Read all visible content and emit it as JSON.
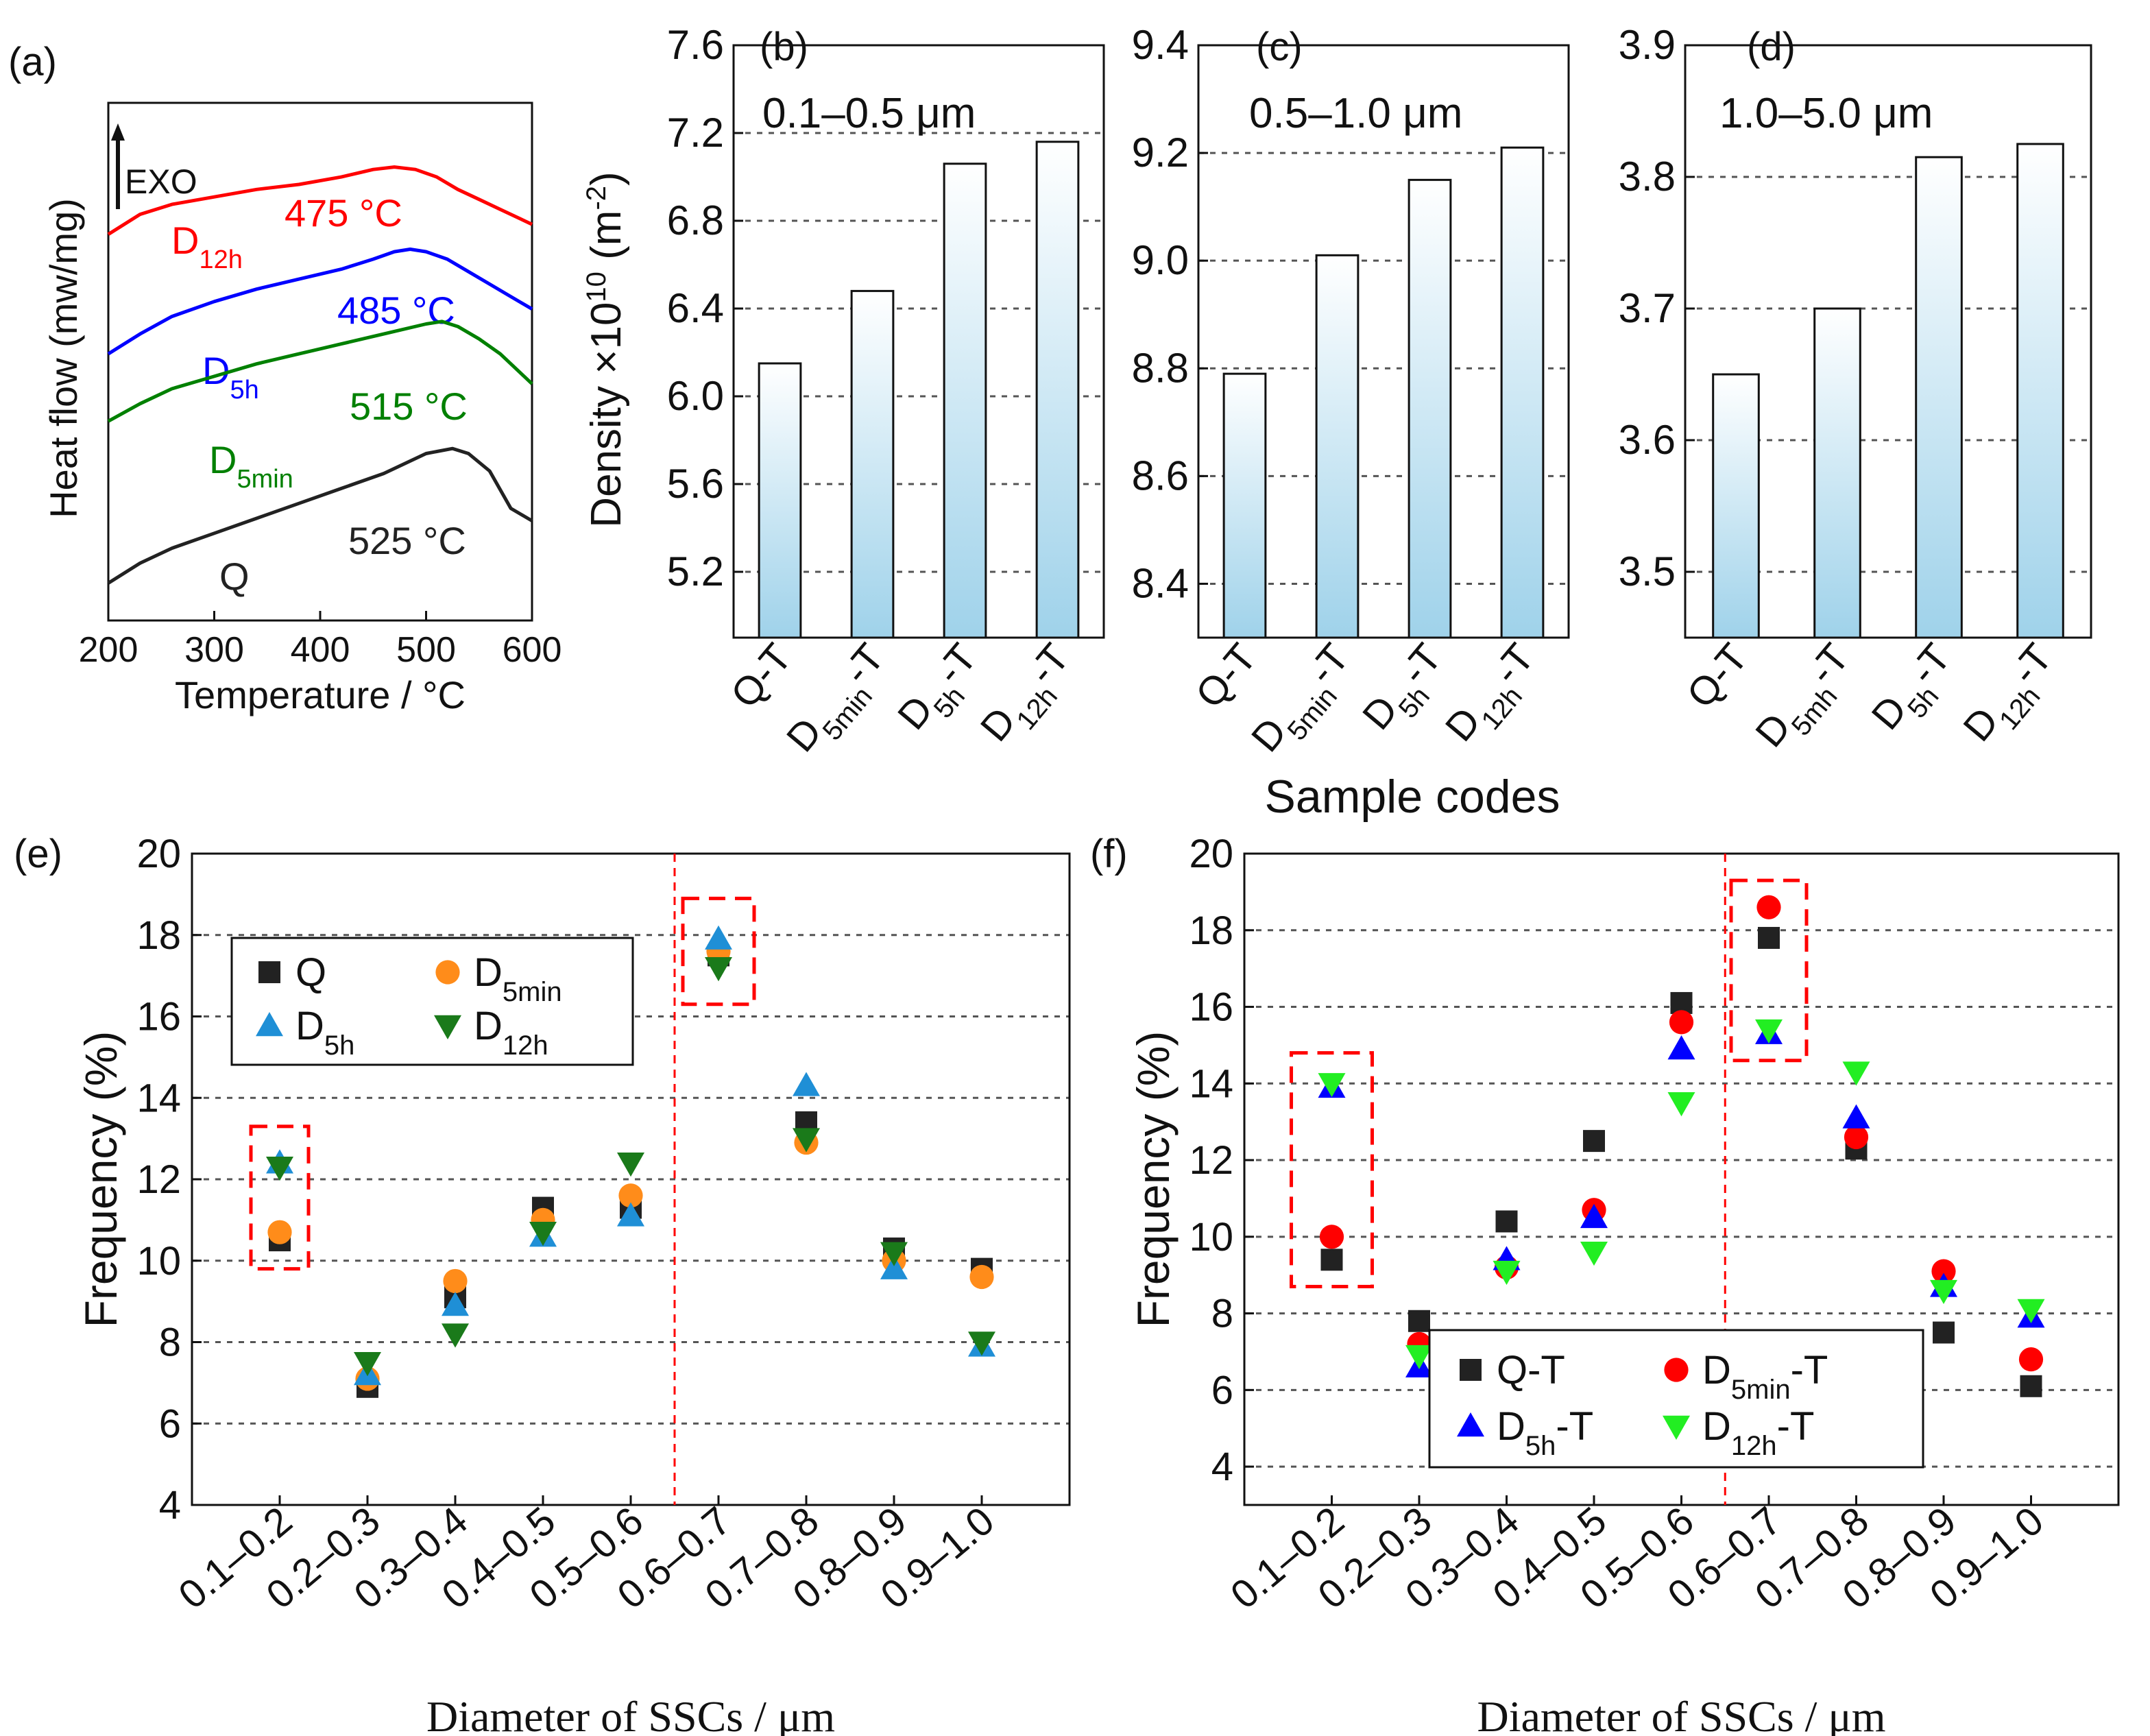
{
  "figure_labels": [
    "(a)",
    "(b)",
    "(c)",
    "(d)",
    "(e)",
    "(f)"
  ],
  "colors": {
    "red": "#ff0000",
    "blue": "#0000ff",
    "green": "#008000",
    "black": "#222222",
    "orange": "#ff8c1a",
    "skyblue": "#1f8fd6",
    "darkgreen": "#1a7a1a",
    "bright_green": "#22ee22",
    "bar_top": "#ffffff",
    "bar_bottom": "#9fd2ea"
  },
  "shared_text": {
    "density_ylabel": "Density ×10",
    "density_ylabel_exp": "10",
    "density_ylabel_unit_prefix": " (m",
    "density_ylabel_unit_exp": "-2",
    "density_ylabel_unit_suffix": ")",
    "sample_codes_label": "Sample codes"
  },
  "chart_data": [
    {
      "id": "a",
      "type": "line",
      "title": "",
      "xlabel": "Temperature / °C",
      "ylabel": "Heat flow (mw/mg)",
      "xlim": [
        200,
        600
      ],
      "xticks": [
        200,
        300,
        400,
        500,
        600
      ],
      "exo_label": "EXO",
      "series": [
        {
          "name": "D",
          "sub": "12h",
          "color": "red",
          "peak_label": "475 °C",
          "x": [
            200,
            230,
            260,
            300,
            340,
            380,
            420,
            450,
            470,
            490,
            510,
            530,
            550,
            570,
            590,
            600
          ],
          "y": [
            0.7,
            0.78,
            0.82,
            0.85,
            0.88,
            0.9,
            0.93,
            0.96,
            0.97,
            0.96,
            0.93,
            0.88,
            0.84,
            0.8,
            0.76,
            0.74
          ]
        },
        {
          "name": "D",
          "sub": "5h",
          "color": "blue",
          "peak_label": "485 °C",
          "x": [
            200,
            230,
            260,
            300,
            340,
            380,
            420,
            450,
            470,
            485,
            500,
            520,
            540,
            560,
            580,
            600
          ],
          "y": [
            0.22,
            0.3,
            0.37,
            0.43,
            0.48,
            0.52,
            0.56,
            0.6,
            0.63,
            0.64,
            0.63,
            0.6,
            0.55,
            0.5,
            0.45,
            0.4
          ]
        },
        {
          "name": "D",
          "sub": "5min",
          "color": "green",
          "peak_label": "515 °C",
          "x": [
            200,
            230,
            260,
            300,
            340,
            380,
            420,
            460,
            500,
            515,
            530,
            550,
            570,
            590,
            600
          ],
          "y": [
            -0.05,
            0.02,
            0.08,
            0.13,
            0.18,
            0.22,
            0.26,
            0.3,
            0.34,
            0.35,
            0.33,
            0.28,
            0.22,
            0.14,
            0.1
          ]
        },
        {
          "name": "Q",
          "sub": "",
          "color": "black",
          "peak_label": "525 °C",
          "x": [
            200,
            230,
            260,
            300,
            340,
            380,
            420,
            460,
            500,
            525,
            540,
            560,
            580,
            600
          ],
          "y": [
            -0.7,
            -0.62,
            -0.56,
            -0.5,
            -0.44,
            -0.38,
            -0.32,
            -0.26,
            -0.18,
            -0.16,
            -0.18,
            -0.25,
            -0.4,
            -0.45
          ]
        }
      ]
    },
    {
      "id": "b",
      "type": "bar",
      "range_label": "0.1–0.5 μm",
      "categories": [
        {
          "main": "Q-T",
          "sub": "",
          "suffix": ""
        },
        {
          "main": "D",
          "sub": "5min",
          "suffix": "-T"
        },
        {
          "main": "D",
          "sub": "5h",
          "suffix": "-T"
        },
        {
          "main": "D",
          "sub": "12h",
          "suffix": "-T"
        }
      ],
      "values": [
        6.15,
        6.48,
        7.06,
        7.16
      ],
      "ylim": [
        4.9,
        7.6
      ],
      "yticks": [
        5.2,
        5.6,
        6.0,
        6.4,
        6.8,
        7.2,
        7.6
      ],
      "ytick_labels": [
        "5.2",
        "5.6",
        "6.0",
        "6.4",
        "6.8",
        "7.2",
        "7.6"
      ]
    },
    {
      "id": "c",
      "type": "bar",
      "range_label": "0.5–1.0 μm",
      "categories": [
        {
          "main": "Q-T",
          "sub": "",
          "suffix": ""
        },
        {
          "main": "D",
          "sub": "5min",
          "suffix": "-T"
        },
        {
          "main": "D",
          "sub": "5h",
          "suffix": "-T"
        },
        {
          "main": "D",
          "sub": "12h",
          "suffix": "-T"
        }
      ],
      "values": [
        8.79,
        9.01,
        9.15,
        9.21
      ],
      "ylim": [
        8.3,
        9.4
      ],
      "yticks": [
        8.4,
        8.6,
        8.8,
        9.0,
        9.2,
        9.4
      ],
      "ytick_labels": [
        "8.4",
        "8.6",
        "8.8",
        "9.0",
        "9.2",
        "9.4"
      ]
    },
    {
      "id": "d",
      "type": "bar",
      "range_label": "1.0–5.0 μm",
      "categories": [
        {
          "main": "Q-T",
          "sub": "",
          "suffix": ""
        },
        {
          "main": "D",
          "sub": "5mh",
          "suffix": "-T"
        },
        {
          "main": "D",
          "sub": "5h",
          "suffix": "-T"
        },
        {
          "main": "D",
          "sub": "12h",
          "suffix": "-T"
        }
      ],
      "values": [
        3.65,
        3.7,
        3.815,
        3.825
      ],
      "ylim": [
        3.45,
        3.9
      ],
      "yticks": [
        3.5,
        3.6,
        3.7,
        3.8,
        3.9
      ],
      "ytick_labels": [
        "3.5",
        "3.6",
        "3.7",
        "3.8",
        "3.9"
      ]
    },
    {
      "id": "e",
      "type": "scatter",
      "xlabel": "Diameter of SSCs / μm",
      "ylabel": "Frequency (%)",
      "categories": [
        "0.1–0.2",
        "0.2–0.3",
        "0.3–0.4",
        "0.4–0.5",
        "0.5–0.6",
        "0.6–0.7",
        "0.7–0.8",
        "0.8–0.9",
        "0.9–1.0"
      ],
      "ylim": [
        4,
        20
      ],
      "yticks": [
        4,
        6,
        8,
        10,
        12,
        14,
        16,
        18,
        20
      ],
      "ytick_labels": [
        "4",
        "6",
        "8",
        "10",
        "12",
        "14",
        "16",
        "18",
        "20"
      ],
      "series": [
        {
          "name": "Q",
          "sub": "",
          "suffix": "",
          "marker": "square",
          "color": "black",
          "values": [
            10.5,
            6.9,
            9.1,
            11.3,
            11.3,
            17.5,
            13.4,
            10.3,
            9.8
          ]
        },
        {
          "name": "D",
          "sub": "5min",
          "suffix": "",
          "marker": "circle",
          "color": "orange",
          "values": [
            10.7,
            7.1,
            9.5,
            11.0,
            11.6,
            17.6,
            12.9,
            10.0,
            9.6
          ]
        },
        {
          "name": "D",
          "sub": "5h",
          "suffix": "",
          "marker": "triangle-up",
          "color": "skyblue",
          "values": [
            12.4,
            7.2,
            8.9,
            10.6,
            11.1,
            17.9,
            14.3,
            9.8,
            7.9
          ]
        },
        {
          "name": "D",
          "sub": "12h",
          "suffix": "",
          "marker": "triangle-down",
          "color": "darkgreen",
          "values": [
            12.3,
            7.5,
            8.2,
            10.7,
            12.4,
            17.2,
            13.0,
            10.2,
            8.0
          ]
        }
      ]
    },
    {
      "id": "f",
      "type": "scatter",
      "xlabel": "Diameter of SSCs / μm",
      "ylabel": "Frequency (%)",
      "categories": [
        "0.1–0.2",
        "0.2–0.3",
        "0.3–0.4",
        "0.4–0.5",
        "0.5–0.6",
        "0.6–0.7",
        "0.7–0.8",
        "0.8–0.9",
        "0.9–1.0"
      ],
      "ylim": [
        3,
        20
      ],
      "yticks": [
        4,
        6,
        8,
        10,
        12,
        14,
        16,
        18,
        20
      ],
      "ytick_labels": [
        "4",
        "6",
        "8",
        "10",
        "12",
        "14",
        "16",
        "18",
        "20"
      ],
      "series": [
        {
          "name": "Q-T",
          "sub": "",
          "suffix": "",
          "marker": "square",
          "color": "black",
          "values": [
            9.4,
            7.8,
            10.4,
            12.5,
            16.1,
            17.8,
            12.3,
            7.5,
            6.1
          ]
        },
        {
          "name": "D",
          "sub": "5min",
          "suffix": "-T",
          "marker": "circle",
          "color": "red",
          "values": [
            10.0,
            7.2,
            9.2,
            10.7,
            15.6,
            18.6,
            12.6,
            9.1,
            6.8
          ]
        },
        {
          "name": "D",
          "sub": "5h",
          "suffix": "-T",
          "marker": "triangle-up",
          "color": "blue",
          "values": [
            13.9,
            6.6,
            9.4,
            10.5,
            14.9,
            15.3,
            13.1,
            8.7,
            7.9
          ]
        },
        {
          "name": "D",
          "sub": "12h",
          "suffix": "-T",
          "marker": "triangle-down",
          "color": "bright_green",
          "values": [
            14.0,
            6.9,
            9.1,
            9.6,
            13.5,
            15.4,
            14.3,
            8.6,
            8.1
          ]
        }
      ]
    }
  ]
}
